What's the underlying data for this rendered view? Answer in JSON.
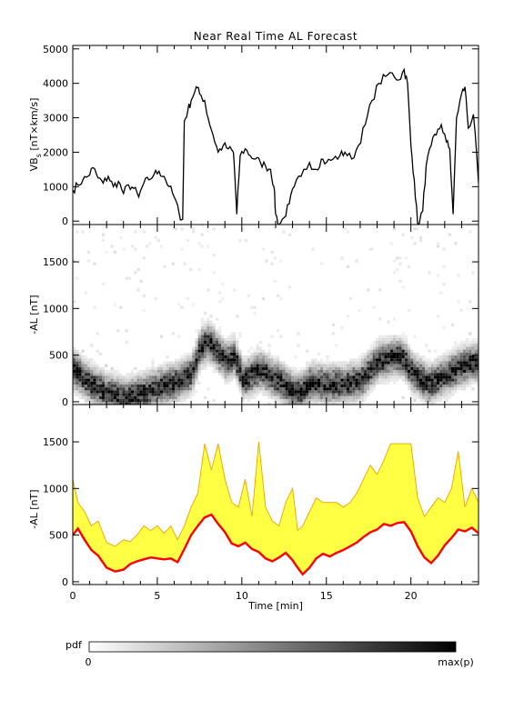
{
  "figure": {
    "title": "Near Real Time AL Forecast",
    "colorbar": {
      "label": "pdf",
      "min_label": "0",
      "max_label": "max(p)"
    }
  },
  "chart_data": [
    {
      "type": "line",
      "panel": "top",
      "ylabel": "VB_s [nT×km/s]",
      "ylabel_main": "VB",
      "ylabel_sub": "s",
      "ylabel_rest": " [nT×km/s]",
      "xlim": [
        0,
        24
      ],
      "ylim": [
        -100,
        5100
      ],
      "yticks": [
        0,
        1000,
        2000,
        3000,
        4000,
        5000
      ],
      "series": [
        {
          "color": "#000000",
          "points": [
            [
              0,
              900
            ],
            [
              0.3,
              1050
            ],
            [
              0.6,
              1200
            ],
            [
              0.9,
              1300
            ],
            [
              1.2,
              1550
            ],
            [
              1.5,
              1250
            ],
            [
              1.8,
              1100
            ],
            [
              2.1,
              1300
            ],
            [
              2.4,
              1000
            ],
            [
              2.7,
              1150
            ],
            [
              3.0,
              800
            ],
            [
              3.3,
              1050
            ],
            [
              3.6,
              950
            ],
            [
              3.9,
              700
            ],
            [
              4.2,
              1100
            ],
            [
              4.5,
              1200
            ],
            [
              4.8,
              1350
            ],
            [
              5.1,
              1450
            ],
            [
              5.4,
              1300
            ],
            [
              5.7,
              1000
            ],
            [
              6.0,
              700
            ],
            [
              6.3,
              200
            ],
            [
              6.5,
              50
            ],
            [
              6.6,
              2900
            ],
            [
              6.8,
              3200
            ],
            [
              7.0,
              3500
            ],
            [
              7.3,
              3900
            ],
            [
              7.5,
              3700
            ],
            [
              7.8,
              3500
            ],
            [
              8.0,
              3000
            ],
            [
              8.3,
              2500
            ],
            [
              8.6,
              2000
            ],
            [
              8.9,
              2200
            ],
            [
              9.2,
              2100
            ],
            [
              9.5,
              2000
            ],
            [
              9.6,
              1200
            ],
            [
              9.7,
              200
            ],
            [
              9.9,
              1900
            ],
            [
              10.2,
              2100
            ],
            [
              10.5,
              1900
            ],
            [
              10.8,
              1800
            ],
            [
              11.1,
              1700
            ],
            [
              11.4,
              1600
            ],
            [
              11.7,
              1500
            ],
            [
              11.9,
              1000
            ],
            [
              12.0,
              200
            ],
            [
              12.2,
              -100
            ],
            [
              12.5,
              100
            ],
            [
              12.8,
              500
            ],
            [
              13.1,
              1000
            ],
            [
              13.5,
              1300
            ],
            [
              14.0,
              1700
            ],
            [
              14.4,
              1500
            ],
            [
              14.7,
              1800
            ],
            [
              15.0,
              1700
            ],
            [
              15.4,
              1800
            ],
            [
              15.8,
              1900
            ],
            [
              16.1,
              2000
            ],
            [
              16.5,
              1800
            ],
            [
              16.9,
              2200
            ],
            [
              17.3,
              2800
            ],
            [
              17.7,
              3500
            ],
            [
              18.1,
              4000
            ],
            [
              18.5,
              4200
            ],
            [
              18.9,
              4300
            ],
            [
              19.3,
              4100
            ],
            [
              19.6,
              4400
            ],
            [
              19.8,
              4000
            ],
            [
              20.0,
              2200
            ],
            [
              20.2,
              1200
            ],
            [
              20.4,
              -100
            ],
            [
              20.7,
              300
            ],
            [
              20.9,
              1600
            ],
            [
              21.2,
              2200
            ],
            [
              21.5,
              2500
            ],
            [
              21.8,
              2800
            ],
            [
              22.1,
              2300
            ],
            [
              22.3,
              2100
            ],
            [
              22.5,
              200
            ],
            [
              22.7,
              3000
            ],
            [
              23.0,
              3700
            ],
            [
              23.2,
              3900
            ],
            [
              23.4,
              2700
            ],
            [
              23.7,
              3100
            ],
            [
              24.0,
              1100
            ]
          ]
        }
      ]
    },
    {
      "type": "heatmap",
      "panel": "middle",
      "ylabel": "-AL [nT]",
      "xlim": [
        0,
        24
      ],
      "ylim": [
        -30,
        1900
      ],
      "yticks": [
        0,
        500,
        1000,
        1500
      ],
      "color_range": [
        "#ffffff",
        "#000000"
      ],
      "trend": [
        [
          0,
          350
        ],
        [
          1,
          200
        ],
        [
          2,
          100
        ],
        [
          3,
          60
        ],
        [
          4,
          100
        ],
        [
          5,
          170
        ],
        [
          6,
          220
        ],
        [
          7,
          320
        ],
        [
          7.5,
          600
        ],
        [
          8,
          650
        ],
        [
          8.5,
          550
        ],
        [
          9,
          450
        ],
        [
          9.5,
          500
        ],
        [
          10,
          250
        ],
        [
          11,
          350
        ],
        [
          12,
          250
        ],
        [
          13,
          120
        ],
        [
          13.5,
          120
        ],
        [
          14,
          220
        ],
        [
          15,
          200
        ],
        [
          16,
          200
        ],
        [
          17,
          250
        ],
        [
          18,
          450
        ],
        [
          19,
          500
        ],
        [
          19.5,
          480
        ],
        [
          20,
          330
        ],
        [
          21,
          200
        ],
        [
          22,
          300
        ],
        [
          23,
          400
        ],
        [
          24,
          450
        ]
      ]
    },
    {
      "type": "area",
      "panel": "bottom",
      "ylabel": "-AL [nT]",
      "xlabel": "Time [min]",
      "xlim": [
        0,
        24
      ],
      "ylim": [
        -30,
        1900
      ],
      "xticks": [
        0,
        5,
        10,
        15,
        20
      ],
      "yticks": [
        0,
        500,
        1000,
        1500
      ],
      "band_fill_color": "#ffff44",
      "band_edge_color": "#f0a000",
      "median_color": "#ff0000",
      "median": [
        [
          0,
          500
        ],
        [
          0.3,
          570
        ],
        [
          0.7,
          450
        ],
        [
          1.1,
          340
        ],
        [
          1.5,
          280
        ],
        [
          2.0,
          150
        ],
        [
          2.5,
          110
        ],
        [
          3.0,
          130
        ],
        [
          3.4,
          190
        ],
        [
          3.8,
          220
        ],
        [
          4.2,
          240
        ],
        [
          4.6,
          260
        ],
        [
          5.0,
          250
        ],
        [
          5.4,
          240
        ],
        [
          5.8,
          250
        ],
        [
          6.2,
          210
        ],
        [
          6.6,
          350
        ],
        [
          7.0,
          500
        ],
        [
          7.4,
          600
        ],
        [
          7.8,
          690
        ],
        [
          8.2,
          720
        ],
        [
          8.6,
          620
        ],
        [
          9.0,
          530
        ],
        [
          9.4,
          410
        ],
        [
          9.8,
          380
        ],
        [
          10.2,
          420
        ],
        [
          10.6,
          350
        ],
        [
          11.0,
          320
        ],
        [
          11.4,
          250
        ],
        [
          11.8,
          220
        ],
        [
          12.2,
          260
        ],
        [
          12.6,
          310
        ],
        [
          13.0,
          230
        ],
        [
          13.3,
          150
        ],
        [
          13.6,
          80
        ],
        [
          14.0,
          150
        ],
        [
          14.4,
          250
        ],
        [
          14.8,
          300
        ],
        [
          15.2,
          270
        ],
        [
          15.6,
          310
        ],
        [
          16.0,
          340
        ],
        [
          16.4,
          380
        ],
        [
          16.8,
          420
        ],
        [
          17.2,
          480
        ],
        [
          17.6,
          530
        ],
        [
          18.0,
          560
        ],
        [
          18.4,
          620
        ],
        [
          18.8,
          600
        ],
        [
          19.2,
          630
        ],
        [
          19.6,
          640
        ],
        [
          20.0,
          540
        ],
        [
          20.4,
          380
        ],
        [
          20.8,
          260
        ],
        [
          21.2,
          200
        ],
        [
          21.6,
          280
        ],
        [
          22.0,
          390
        ],
        [
          22.4,
          470
        ],
        [
          22.8,
          560
        ],
        [
          23.2,
          540
        ],
        [
          23.6,
          580
        ],
        [
          24.0,
          520
        ]
      ],
      "upper": [
        [
          0,
          1100
        ],
        [
          0.3,
          850
        ],
        [
          0.7,
          750
        ],
        [
          1.1,
          600
        ],
        [
          1.5,
          650
        ],
        [
          2.0,
          420
        ],
        [
          2.5,
          380
        ],
        [
          3.0,
          450
        ],
        [
          3.4,
          430
        ],
        [
          3.8,
          500
        ],
        [
          4.2,
          600
        ],
        [
          4.6,
          550
        ],
        [
          5.0,
          600
        ],
        [
          5.4,
          520
        ],
        [
          5.8,
          600
        ],
        [
          6.2,
          450
        ],
        [
          6.6,
          600
        ],
        [
          7.0,
          800
        ],
        [
          7.4,
          950
        ],
        [
          7.8,
          1480
        ],
        [
          8.2,
          1200
        ],
        [
          8.6,
          1480
        ],
        [
          9.0,
          1100
        ],
        [
          9.4,
          850
        ],
        [
          9.8,
          800
        ],
        [
          10.2,
          1100
        ],
        [
          10.6,
          700
        ],
        [
          11.0,
          1500
        ],
        [
          11.4,
          800
        ],
        [
          11.8,
          650
        ],
        [
          12.2,
          600
        ],
        [
          12.6,
          850
        ],
        [
          13.0,
          1000
        ],
        [
          13.3,
          550
        ],
        [
          13.6,
          600
        ],
        [
          14.0,
          750
        ],
        [
          14.4,
          900
        ],
        [
          14.8,
          850
        ],
        [
          15.2,
          850
        ],
        [
          15.6,
          850
        ],
        [
          16.0,
          800
        ],
        [
          16.4,
          850
        ],
        [
          16.8,
          950
        ],
        [
          17.2,
          1100
        ],
        [
          17.6,
          1250
        ],
        [
          18.0,
          1150
        ],
        [
          18.4,
          1300
        ],
        [
          18.8,
          1480
        ],
        [
          19.2,
          1480
        ],
        [
          19.6,
          1480
        ],
        [
          20.0,
          1480
        ],
        [
          20.4,
          900
        ],
        [
          20.8,
          700
        ],
        [
          21.2,
          800
        ],
        [
          21.6,
          900
        ],
        [
          22.0,
          850
        ],
        [
          22.4,
          1000
        ],
        [
          22.8,
          1400
        ],
        [
          23.2,
          800
        ],
        [
          23.6,
          1000
        ],
        [
          24.0,
          850
        ]
      ]
    }
  ]
}
